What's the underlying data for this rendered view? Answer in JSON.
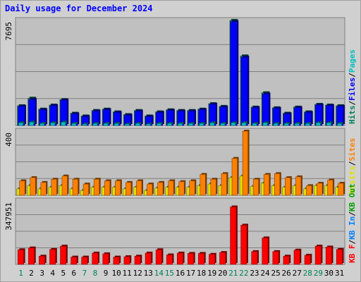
{
  "title": "Daily usage for December 2024",
  "colors": {
    "title": "#0000ff",
    "hits": "#00805c",
    "files": "#0000ff",
    "pages": "#00c0c0",
    "visits": "#e0e000",
    "sites": "#ff8000",
    "kb_out": "#00a000",
    "kb_in": "#0080ff",
    "kb_f": "#ff0000",
    "weekend_day": "#00805c",
    "weekday": "#000000"
  },
  "chart_data": [
    {
      "type": "bar",
      "panel": "top",
      "ymax_label": "7695",
      "ylim": [
        0,
        7695
      ],
      "x": [
        1,
        2,
        3,
        4,
        5,
        6,
        7,
        8,
        9,
        10,
        11,
        12,
        13,
        14,
        15,
        16,
        17,
        18,
        19,
        20,
        21,
        22,
        23,
        24,
        25,
        26,
        27,
        28,
        29,
        30,
        31
      ],
      "legend": [
        "Hits",
        "/",
        "Files",
        "/",
        "Pages"
      ],
      "series": [
        {
          "name": "Hits",
          "values": [
            1450,
            2000,
            1200,
            1500,
            1900,
            900,
            700,
            1100,
            1200,
            1000,
            800,
            1100,
            700,
            1000,
            1150,
            1100,
            1100,
            1200,
            1600,
            1400,
            7700,
            5100,
            1350,
            2400,
            1300,
            900,
            1350,
            1000,
            1550,
            1500,
            1450
          ]
        },
        {
          "name": "Files",
          "values": [
            1400,
            1900,
            1150,
            1450,
            1850,
            850,
            650,
            1050,
            1150,
            950,
            750,
            1050,
            650,
            950,
            1100,
            1050,
            1050,
            1150,
            1550,
            1350,
            7600,
            5000,
            1300,
            2300,
            1250,
            850,
            1300,
            950,
            1500,
            1450,
            1400
          ]
        },
        {
          "name": "Pages",
          "values": [
            200,
            250,
            150,
            200,
            250,
            150,
            100,
            150,
            150,
            150,
            100,
            150,
            100,
            150,
            150,
            150,
            150,
            150,
            200,
            150,
            200,
            200,
            150,
            200,
            150,
            150,
            150,
            150,
            200,
            200,
            150
          ]
        }
      ]
    },
    {
      "type": "bar",
      "panel": "middle",
      "ymax_label": "400",
      "ylim": [
        0,
        400
      ],
      "x": [
        1,
        2,
        3,
        4,
        5,
        6,
        7,
        8,
        9,
        10,
        11,
        12,
        13,
        14,
        15,
        16,
        17,
        18,
        19,
        20,
        21,
        22,
        23,
        24,
        25,
        26,
        27,
        28,
        29,
        30,
        31
      ],
      "legend": [
        "Visits",
        "/",
        "Sites"
      ],
      "series": [
        {
          "name": "Visits",
          "values": [
            40,
            60,
            40,
            50,
            60,
            40,
            30,
            50,
            50,
            50,
            40,
            50,
            30,
            45,
            50,
            50,
            50,
            60,
            70,
            60,
            110,
            120,
            55,
            75,
            60,
            50,
            60,
            40,
            60,
            60,
            50
          ]
        },
        {
          "name": "Sites",
          "values": [
            90,
            110,
            80,
            100,
            120,
            100,
            70,
            100,
            90,
            90,
            80,
            90,
            70,
            80,
            90,
            85,
            90,
            130,
            100,
            135,
            230,
            400,
            100,
            130,
            135,
            110,
            115,
            60,
            75,
            95,
            75
          ]
        }
      ]
    },
    {
      "type": "bar",
      "panel": "bottom",
      "ymax_label": "347951",
      "ylim": [
        0,
        347951
      ],
      "x": [
        1,
        2,
        3,
        4,
        5,
        6,
        7,
        8,
        9,
        10,
        11,
        12,
        13,
        14,
        15,
        16,
        17,
        18,
        19,
        20,
        21,
        22,
        23,
        24,
        25,
        26,
        27,
        28,
        29,
        30,
        31
      ],
      "legend": [
        "KB F",
        "/",
        "KB In",
        "/",
        "KB Out"
      ],
      "series": [
        {
          "name": "KB F",
          "values": [
            80000,
            90000,
            45000,
            82000,
            100000,
            40000,
            40000,
            62000,
            58000,
            40000,
            42000,
            45000,
            62000,
            80000,
            52000,
            62000,
            60000,
            60000,
            55000,
            65000,
            315000,
            215000,
            70000,
            145000,
            70000,
            45000,
            78000,
            50000,
            100000,
            95000,
            82000
          ]
        }
      ]
    }
  ],
  "day_labels": [
    "1",
    "2",
    "3",
    "4",
    "5",
    "6",
    "7",
    "8",
    "9",
    "10",
    "11",
    "12",
    "13",
    "14",
    "15",
    "16",
    "17",
    "18",
    "19",
    "20",
    "21",
    "22",
    "23",
    "24",
    "25",
    "26",
    "27",
    "28",
    "29",
    "30",
    "31"
  ],
  "weekend_days": [
    1,
    7,
    8,
    14,
    15,
    21,
    22,
    28,
    29
  ]
}
